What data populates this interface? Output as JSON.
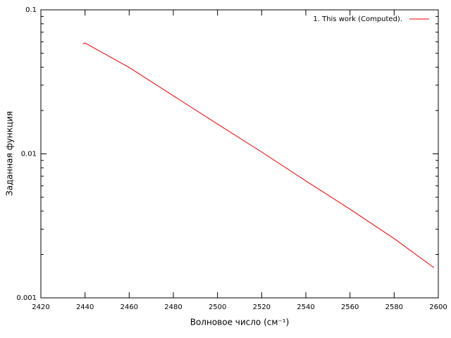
{
  "chart_data": {
    "type": "line",
    "xlabel": "Волновое число (см⁻¹)",
    "ylabel": "Заданная функция",
    "x": [
      2439,
      2440,
      2460,
      2480,
      2500,
      2520,
      2540,
      2560,
      2580,
      2598
    ],
    "series": [
      {
        "name": "1. This work (Computed).",
        "color": "#e00000",
        "values": [
          0.058,
          0.0589,
          0.0398,
          0.0253,
          0.0161,
          0.0103,
          0.00649,
          0.00413,
          0.00258,
          0.00162
        ]
      }
    ],
    "xlim": [
      2420,
      2600
    ],
    "xticks": [
      2420,
      2440,
      2460,
      2480,
      2500,
      2520,
      2540,
      2560,
      2580,
      2600
    ],
    "ylim": [
      0.001,
      0.1
    ],
    "yticks": [
      0.001,
      0.01,
      0.1
    ],
    "log_y": true,
    "legend": "top-right"
  }
}
